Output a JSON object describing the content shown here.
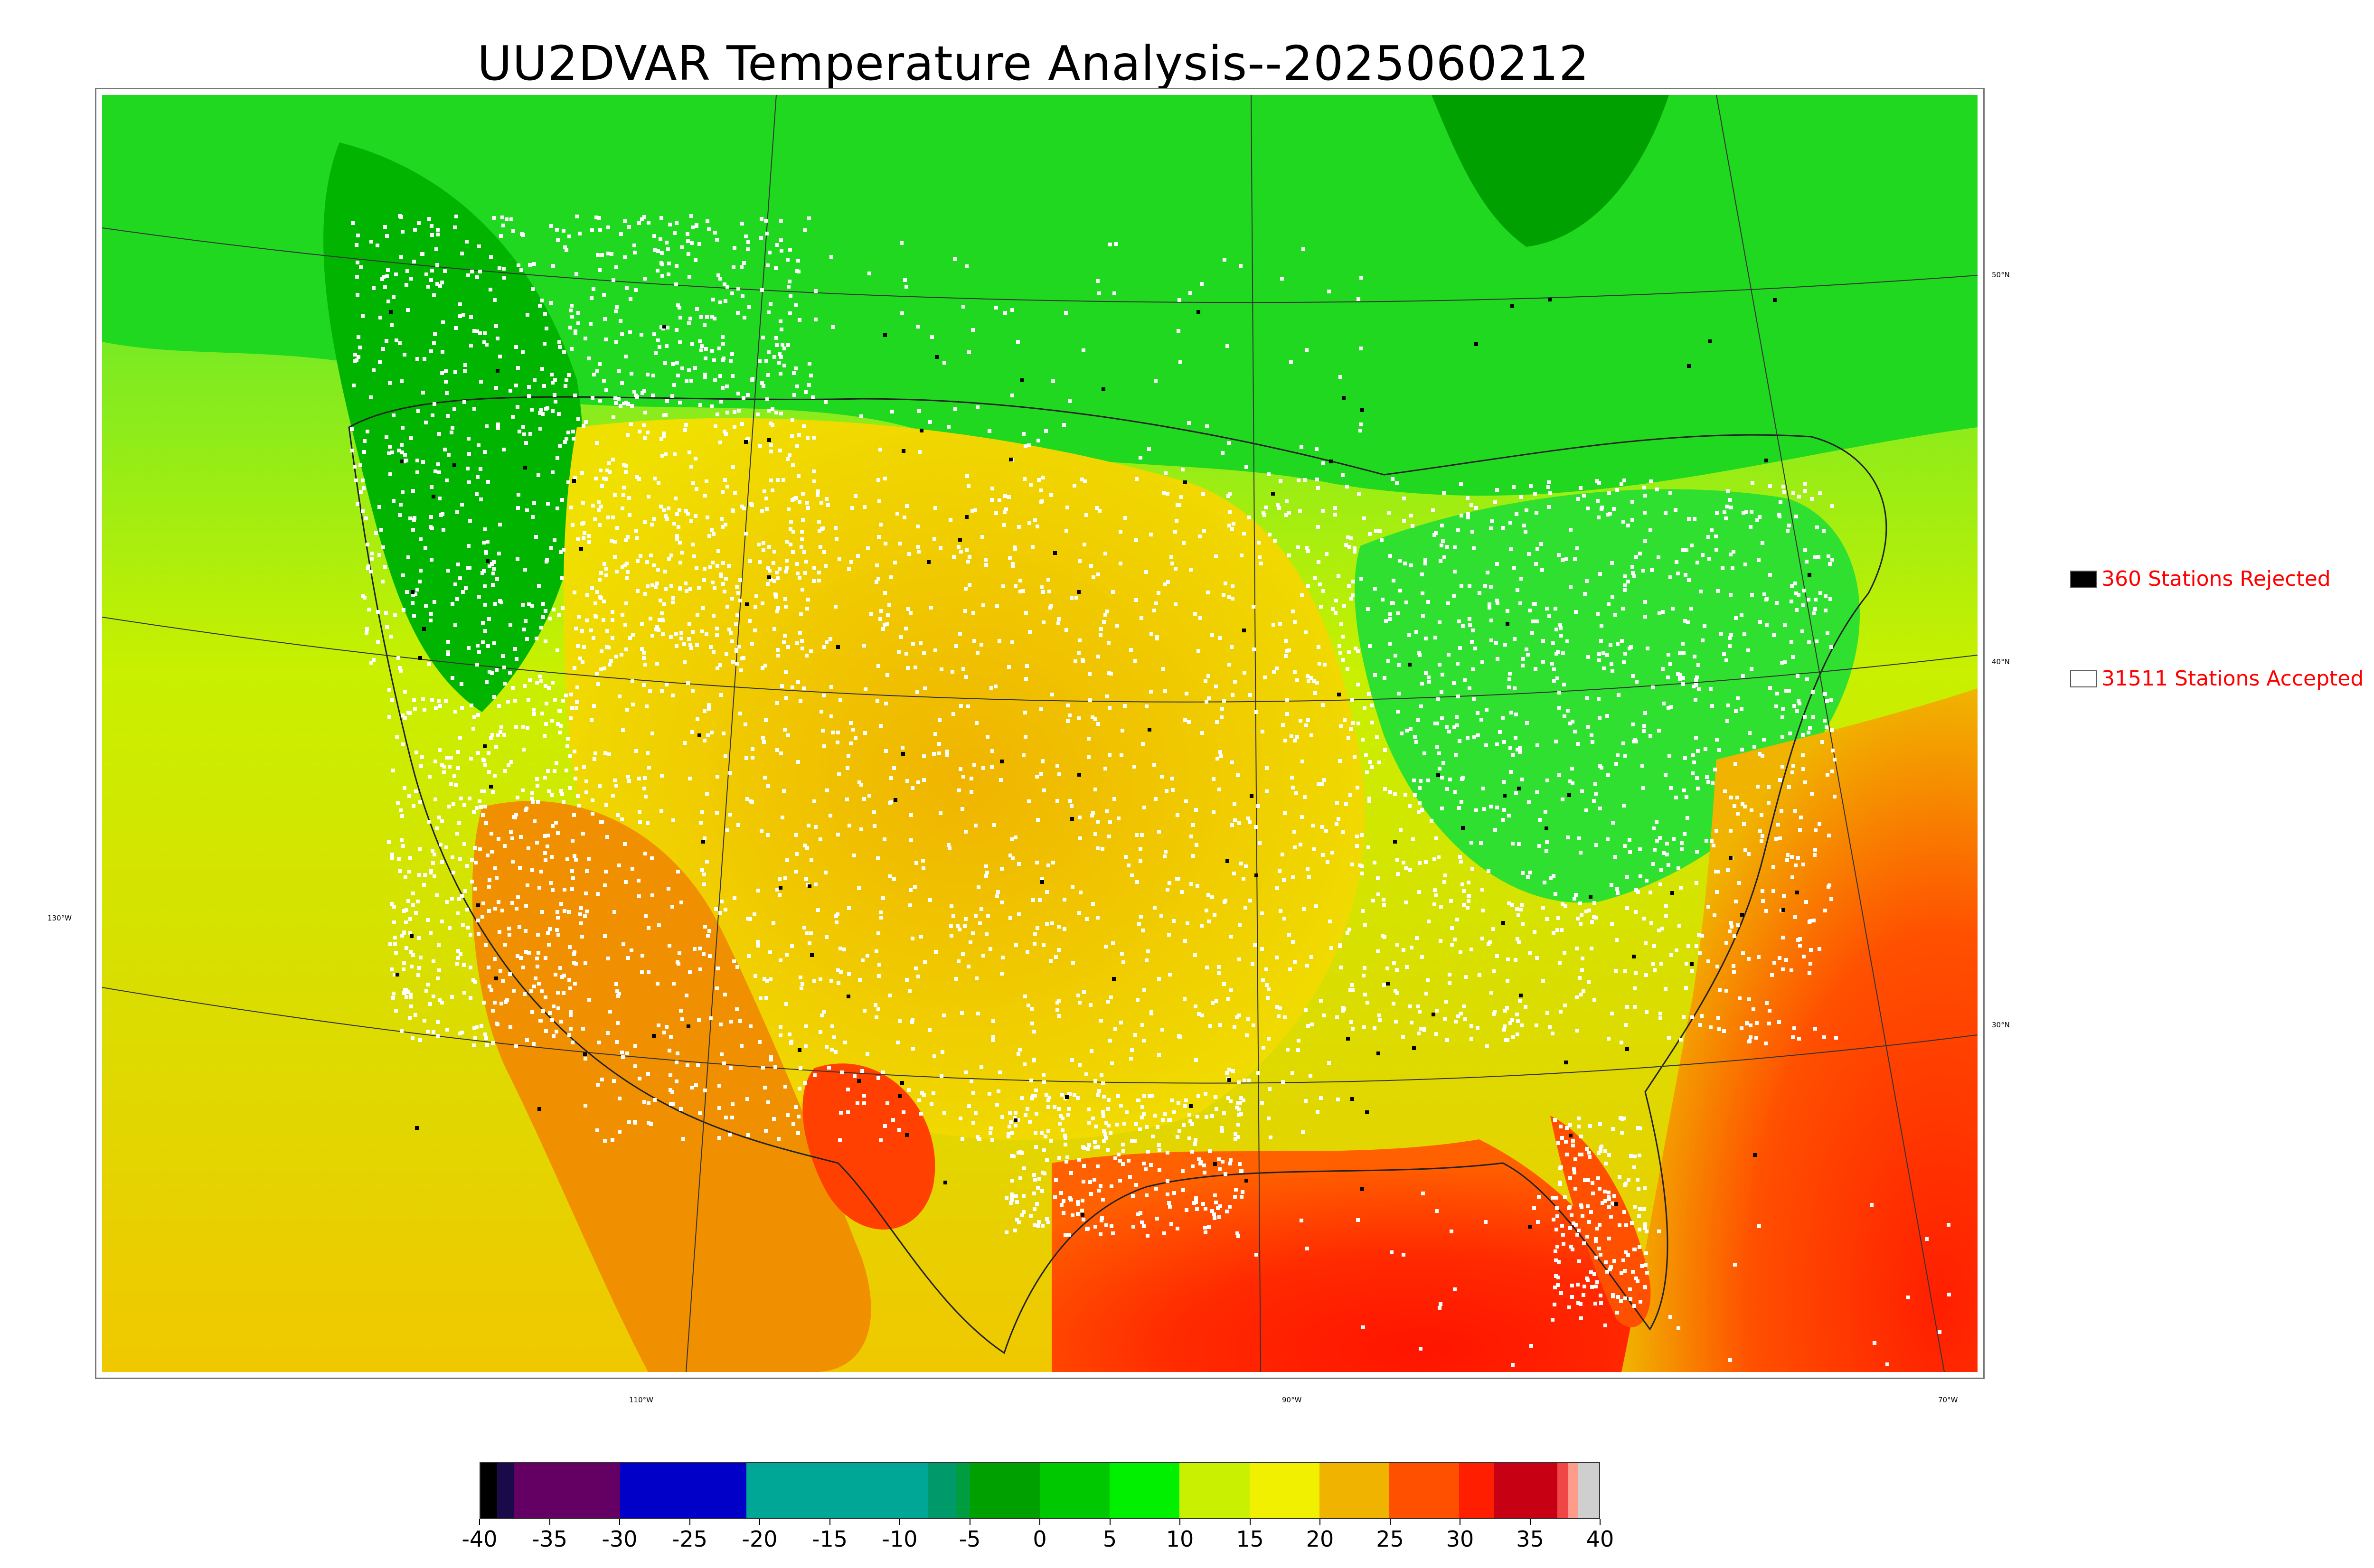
{
  "title": "UU2DVAR Temperature Analysis--2025060212",
  "legend": {
    "rejected": {
      "label": "360 Stations Rejected",
      "swatch_color": "#000000"
    },
    "accepted": {
      "label": "31511 Stations Accepted",
      "swatch_color": "#ffffff"
    }
  },
  "lat_labels": [
    "50°N",
    "40°N",
    "30°N"
  ],
  "lon_labels": [
    "130°W",
    "110°W",
    "90°W",
    "70°W"
  ],
  "colorbar": {
    "min": -40,
    "max": 40,
    "ticks": [
      "-40",
      "-35",
      "-30",
      "-25",
      "-20",
      "-15",
      "-10",
      "-5",
      "0",
      "5",
      "10",
      "15",
      "20",
      "25",
      "30",
      "35",
      "40"
    ],
    "segments": [
      {
        "from": -40,
        "to": -38.8,
        "color": "#000000"
      },
      {
        "from": -38.8,
        "to": -37.6,
        "color": "#1a0a4a"
      },
      {
        "from": -37.6,
        "to": -30,
        "color": "#640064"
      },
      {
        "from": -30,
        "to": -21,
        "color": "#0000c8"
      },
      {
        "from": -21,
        "to": -8,
        "color": "#00a696"
      },
      {
        "from": -8,
        "to": -6,
        "color": "#009a6a"
      },
      {
        "from": -6,
        "to": -5,
        "color": "#009c40"
      },
      {
        "from": -5,
        "to": 0,
        "color": "#00a000"
      },
      {
        "from": 0,
        "to": 5,
        "color": "#00c800"
      },
      {
        "from": 5,
        "to": 10,
        "color": "#00f000"
      },
      {
        "from": 10,
        "to": 15,
        "color": "#c8f000"
      },
      {
        "from": 15,
        "to": 20,
        "color": "#f0f000"
      },
      {
        "from": 20,
        "to": 25,
        "color": "#f0b400"
      },
      {
        "from": 25,
        "to": 30,
        "color": "#ff5000"
      },
      {
        "from": 30,
        "to": 32.5,
        "color": "#ff1e00"
      },
      {
        "from": 32.5,
        "to": 37,
        "color": "#c80014"
      },
      {
        "from": 37,
        "to": 37.8,
        "color": "#f04646"
      },
      {
        "from": 37.8,
        "to": 38.5,
        "color": "#ff9b8a"
      },
      {
        "from": 38.5,
        "to": 40,
        "color": "#cfcfcf"
      }
    ]
  },
  "colors": {
    "cold": "#00b400",
    "cool": "#3ee63e",
    "mild": "#c8f000",
    "warm": "#f0c000",
    "hot": "#ff6000",
    "very_hot": "#ff1e00",
    "station_accepted": "#ffffff",
    "station_rejected": "#000000",
    "legend_text": "#ff0000"
  }
}
